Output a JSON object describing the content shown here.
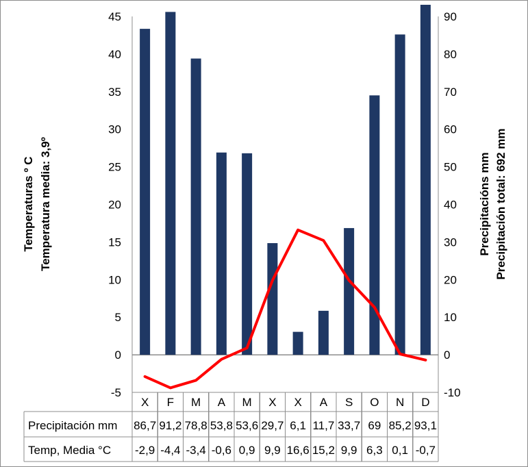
{
  "chart_data": {
    "type": "bar+line",
    "categories": [
      "X",
      "F",
      "M",
      "A",
      "M",
      "X",
      "X",
      "A",
      "S",
      "O",
      "N",
      "D"
    ],
    "series": [
      {
        "name": "Precipitación mm",
        "type": "bar",
        "axis": "right",
        "color": "#1f3864",
        "values": [
          86.7,
          91.2,
          78.8,
          53.8,
          53.6,
          29.7,
          6.1,
          11.7,
          33.7,
          69,
          85.2,
          93.1
        ],
        "labels": [
          "86,7",
          "91,2",
          "78,8",
          "53,8",
          "53,6",
          "29,7",
          "6,1",
          "11,7",
          "33,7",
          "69",
          "85,2",
          "93,1"
        ]
      },
      {
        "name": "Temp, Media °C",
        "type": "line",
        "axis": "left",
        "color": "#ff0000",
        "values": [
          -2.9,
          -4.4,
          -3.4,
          -0.6,
          0.9,
          9.9,
          16.6,
          15.2,
          9.9,
          6.3,
          0.1,
          -0.7
        ],
        "labels": [
          "-2,9",
          "-4,4",
          "-3,4",
          "-0,6",
          "0,9",
          "9,9",
          "16,6",
          "15,2",
          "9,9",
          "6,3",
          "0,1",
          "-0,7"
        ]
      }
    ],
    "left_axis": {
      "label_line1": "Temperaturas º C",
      "label_line2": "Temperatura media: 3,9º",
      "ylim": [
        -5,
        45
      ],
      "ticks": [
        -5,
        0,
        5,
        10,
        15,
        20,
        25,
        30,
        35,
        40,
        45
      ]
    },
    "right_axis": {
      "label_line1": "Precipitacións mm",
      "label_line2": "Precipitación total: 692 mm",
      "ylim": [
        -10,
        90
      ],
      "ticks": [
        -10,
        0,
        10,
        20,
        30,
        40,
        50,
        60,
        70,
        80,
        90
      ]
    },
    "data_table": true
  }
}
